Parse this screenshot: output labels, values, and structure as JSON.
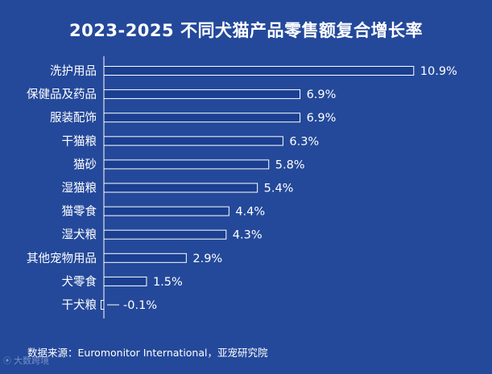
{
  "title": "2023-2025 不同犬猫产品零售额复合增长率",
  "source": "数据来源：Euromonitor International，亚宠研究院",
  "watermark": "大数跨境",
  "colors": {
    "background": "#24499a",
    "bar_fill": "#1b3f91",
    "bar_stroke": "#ffffff",
    "axis": "#ffffff",
    "text": "#ffffff"
  },
  "chart_data": {
    "type": "bar",
    "orientation": "horizontal",
    "title": "2023-2025 不同犬猫产品零售额复合增长率",
    "categories": [
      "洗护用品",
      "保健品及药品",
      "服装配饰",
      "干猫粮",
      "猫砂",
      "湿猫粮",
      "猫零食",
      "湿犬粮",
      "其他宠物用品",
      "犬零食",
      "干犬粮"
    ],
    "values": [
      10.9,
      6.9,
      6.9,
      6.3,
      5.8,
      5.4,
      4.4,
      4.3,
      2.9,
      1.5,
      -0.1
    ],
    "value_labels": [
      "10.9%",
      "6.9%",
      "6.9%",
      "6.3%",
      "5.8%",
      "5.4%",
      "4.4%",
      "4.3%",
      "2.9%",
      "1.5%",
      "-0.1%"
    ],
    "unit": "%",
    "xlim": [
      -0.1,
      10.9
    ],
    "grid": false,
    "legend": "none"
  }
}
